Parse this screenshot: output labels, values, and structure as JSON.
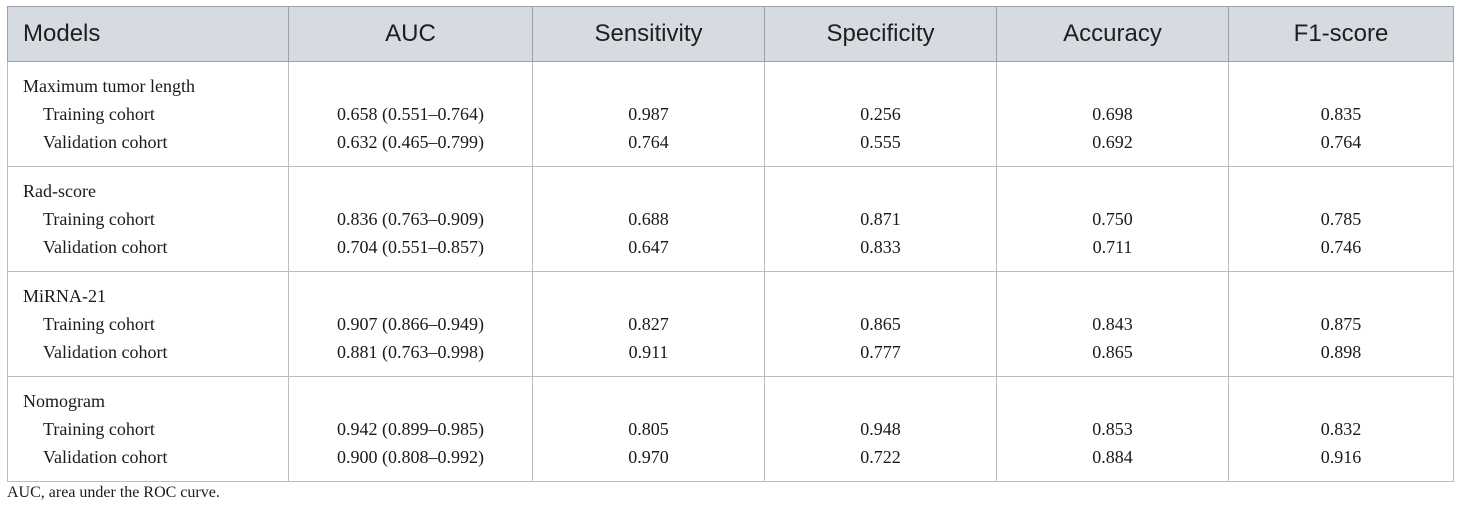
{
  "table": {
    "headers": [
      "Models",
      "AUC",
      "Sensitivity",
      "Specificity",
      "Accuracy",
      "F1-score"
    ],
    "groups": [
      {
        "name": "Maximum tumor length",
        "rows": [
          {
            "label": "Training cohort",
            "auc": "0.658 (0.551–0.764)",
            "sensitivity": "0.987",
            "specificity": "0.256",
            "accuracy": "0.698",
            "f1": "0.835"
          },
          {
            "label": "Validation cohort",
            "auc": "0.632 (0.465–0.799)",
            "sensitivity": "0.764",
            "specificity": "0.555",
            "accuracy": "0.692",
            "f1": "0.764"
          }
        ]
      },
      {
        "name": "Rad-score",
        "rows": [
          {
            "label": "Training cohort",
            "auc": "0.836 (0.763–0.909)",
            "sensitivity": "0.688",
            "specificity": "0.871",
            "accuracy": "0.750",
            "f1": "0.785"
          },
          {
            "label": "Validation cohort",
            "auc": "0.704 (0.551–0.857)",
            "sensitivity": "0.647",
            "specificity": "0.833",
            "accuracy": "0.711",
            "f1": "0.746"
          }
        ]
      },
      {
        "name": "MiRNA-21",
        "rows": [
          {
            "label": "Training cohort",
            "auc": "0.907 (0.866–0.949)",
            "sensitivity": "0.827",
            "specificity": "0.865",
            "accuracy": "0.843",
            "f1": "0.875"
          },
          {
            "label": "Validation cohort",
            "auc": "0.881 (0.763–0.998)",
            "sensitivity": "0.911",
            "specificity": "0.777",
            "accuracy": "0.865",
            "f1": "0.898"
          }
        ]
      },
      {
        "name": "Nomogram",
        "rows": [
          {
            "label": "Training cohort",
            "auc": "0.942 (0.899–0.985)",
            "sensitivity": "0.805",
            "specificity": "0.948",
            "accuracy": "0.853",
            "f1": "0.832"
          },
          {
            "label": "Validation cohort",
            "auc": "0.900 (0.808–0.992)",
            "sensitivity": "0.970",
            "specificity": "0.722",
            "accuracy": "0.884",
            "f1": "0.916"
          }
        ]
      }
    ]
  },
  "footnote": "AUC, area under the ROC curve."
}
